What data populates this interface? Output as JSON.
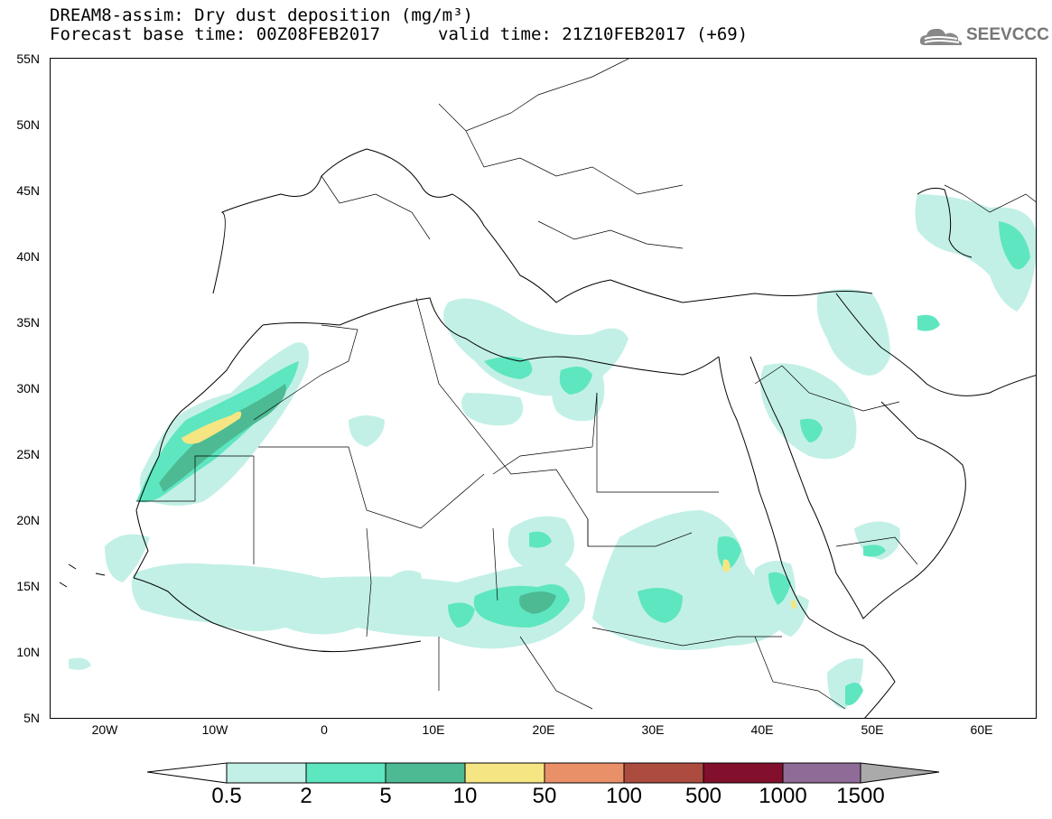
{
  "title": {
    "line1": "DREAM8-assim: Dry dust deposition (mg/m³)",
    "line2a": "Forecast base time: 00Z08FEB2017",
    "line2b": "valid time: 21Z10FEB2017 (+69)"
  },
  "logo": {
    "text": "SEEVCCC",
    "icon": "cloud-logo-icon"
  },
  "map": {
    "lon_range": [
      -25,
      65
    ],
    "lat_range": [
      5,
      55
    ],
    "lat_labels": [
      "55N",
      "50N",
      "45N",
      "40N",
      "35N",
      "30N",
      "25N",
      "20N",
      "15N",
      "10N",
      "5N"
    ],
    "lon_labels": [
      "20W",
      "10W",
      "0",
      "10E",
      "20E",
      "30E",
      "40E",
      "50E",
      "60E"
    ]
  },
  "legend": {
    "thresholds": [
      "0.5",
      "2",
      "5",
      "10",
      "50",
      "100",
      "500",
      "1000",
      "1500"
    ],
    "colors": [
      "#ffffff",
      "#c2f0e6",
      "#5ee6c0",
      "#4dba93",
      "#f5e683",
      "#ea9069",
      "#ac4c3f",
      "#820f2c",
      "#8f6b97",
      "#aaaaaa"
    ]
  }
}
